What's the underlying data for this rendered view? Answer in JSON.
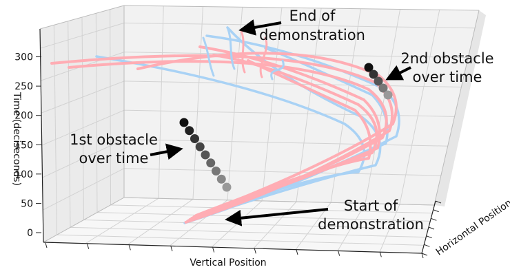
{
  "chart_data": {
    "type": "3d-line",
    "zlabel": "Time (deciseconds)",
    "xlabel": "Vertical Position",
    "ylabel": "Horizontal Position",
    "zlim": [
      0,
      330
    ],
    "z_ticks": [
      "0",
      "50",
      "100",
      "150",
      "200",
      "250",
      "300"
    ],
    "grid": true,
    "colors": {
      "series_light_blue": "#a9d2f5",
      "series_pink": "#ffadb4",
      "obstacle_dark": "#111111",
      "obstacle_light": "#999999",
      "pane_back": "#f2f2f2",
      "pane_side": "#e8e8e8",
      "pane_floor": "#f5f5f5",
      "grid": "#d2d2d2"
    },
    "obstacles": [
      {
        "label": "1st obstacle over time",
        "marker_count": 9
      },
      {
        "label": "2nd obstacle over time",
        "marker_count": 5
      }
    ],
    "annotations": {
      "end": [
        "End of",
        "demonstration"
      ],
      "start": [
        "Start of",
        "demonstration"
      ],
      "obstacle1": [
        "1st obstacle",
        "over time"
      ],
      "obstacle2": [
        "2nd obstacle",
        "over time"
      ]
    }
  }
}
